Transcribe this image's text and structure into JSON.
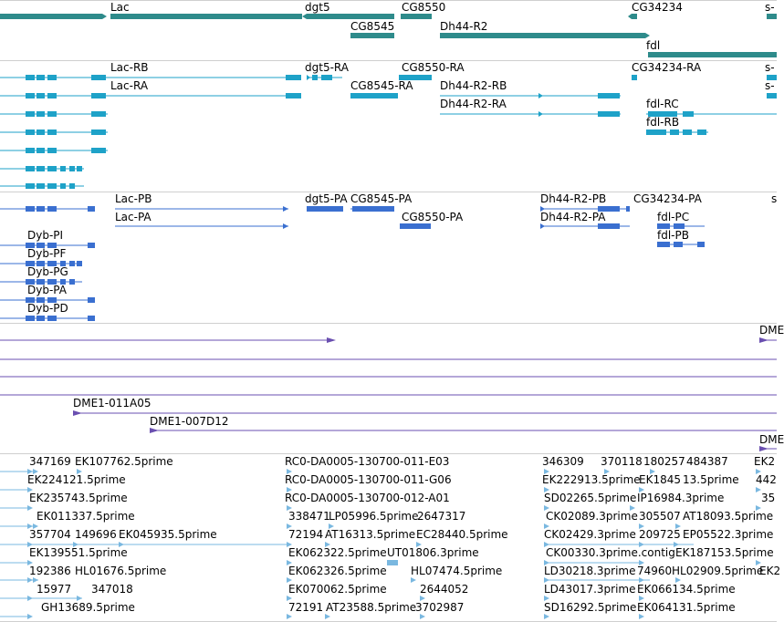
{
  "colors": {
    "gene": "#2e8b8b",
    "transcript": "#1ea2c8",
    "protein": "#3a6fd0",
    "clone": "#6a4fb0",
    "est": "#7ab8e0",
    "divider": "#cfcfcf"
  },
  "tracks": {
    "genes": {
      "labels": [
        "Lac",
        "dgt5",
        "CG8550",
        "CG34234",
        "s-",
        "CG8545",
        "Dh44-R2",
        "fdl"
      ]
    },
    "transcripts": {
      "labels": [
        "Lac-RB",
        "dgt5-RA",
        "CG8550-RA",
        "CG34234-RA",
        "s-",
        "Lac-RA",
        "CG8545-RA",
        "Dh44-R2-RB",
        "s-",
        "Dh44-R2-RA",
        "fdl-RC",
        "fdl-RB"
      ]
    },
    "proteins": {
      "labels": [
        "Lac-PB",
        "dgt5-PA",
        "CG8545-PA",
        "Dh44-R2-PB",
        "CG34234-PA",
        "s",
        "Lac-PA",
        "CG8550-PA",
        "Dh44-R2-PA",
        "fdl-PC",
        "Dyb-PI",
        "fdl-PB",
        "Dyb-PF",
        "Dyb-PG",
        "Dyb-PA",
        "Dyb-PD"
      ]
    },
    "clones": {
      "labels": [
        "DME",
        "DME1-011A05",
        "DME1-007D12",
        "DME"
      ]
    },
    "ests": {
      "labels": [
        "347169",
        "EK107762.5prime",
        "RC0-DA0005-130700-011-E03",
        "346309",
        "370118",
        "180257",
        "484387",
        "EK2",
        "EK224121.5prime",
        "RC0-DA0005-130700-011-G06",
        "EK222913.5prime",
        "EK1845",
        "13.5prime",
        "442",
        "EK235743.5prime",
        "RC0-DA0005-130700-012-A01",
        "SD02265.5prime",
        "IP16984.3prime",
        "35",
        "EK011337.5prime",
        "338471",
        "LP05996.5prime",
        "2647317",
        "CK02089.3prime",
        "305507",
        "AT18093.5prime",
        "357704",
        "149696",
        "EK045935.5prime",
        "72194",
        "AT16313.5prime",
        "EC28440.5prime",
        "CK02429.3prime",
        "209725",
        "EP05522.3prime",
        "EK139551.5prime",
        "EK062322.5prime",
        "UT01806.3prime",
        "CK00330.3prime.contig",
        "EK187153.5prime",
        "192386",
        "HL01676.5prime",
        "EK062326.5prime",
        "HL07474.5prime",
        "LD30218.3prime",
        "74960",
        "HL02909.5prime",
        "EK2",
        "15977",
        "347018",
        "EK070062.5prime",
        "2644052",
        "LD43017.3prime",
        "EK066134.5prime",
        "GH13689.5prime",
        "72191",
        "AT23588.5prime",
        "3702987",
        "SD16292.5prime",
        "EK064131.5prime"
      ]
    }
  }
}
